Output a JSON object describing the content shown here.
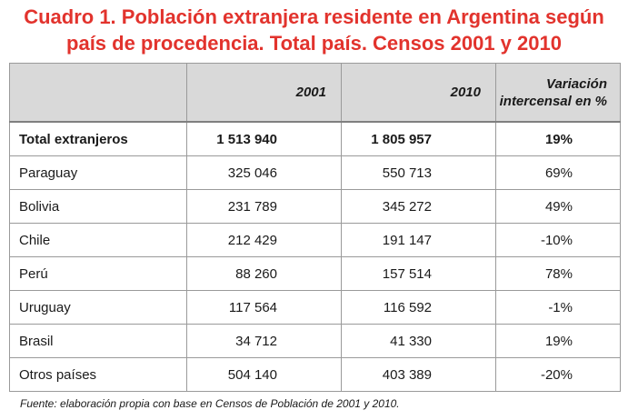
{
  "title_line1": "Cuadro 1. Población extranjera residente en Argentina según",
  "title_line2": "país de procedencia. Total país. Censos 2001 y 2010",
  "headers": {
    "col_2001": "2001",
    "col_2010": "2010",
    "col_var_line1": "Variación",
    "col_var_line2": "intercensal en %"
  },
  "source": "Fuente: elaboración propia con base en Censos de Población de 2001 y 2010.",
  "chart_data": {
    "type": "table",
    "title": "Cuadro 1. Población extranjera residente en Argentina según país de procedencia. Total país. Censos 2001 y 2010",
    "columns": [
      "",
      "2001",
      "2010",
      "Variación intercensal en %"
    ],
    "rows": [
      {
        "name": "Total extranjeros",
        "v2001": "1 513 940",
        "v2010": "1 805 957",
        "var": "19%"
      },
      {
        "name": "Paraguay",
        "v2001": "325 046",
        "v2010": "550 713",
        "var": "69%"
      },
      {
        "name": "Bolivia",
        "v2001": "231 789",
        "v2010": "345 272",
        "var": "49%"
      },
      {
        "name": "Chile",
        "v2001": "212 429",
        "v2010": "191 147",
        "var": "-10%"
      },
      {
        "name": "Perú",
        "v2001": "88 260",
        "v2010": "157 514",
        "var": "78%"
      },
      {
        "name": "Uruguay",
        "v2001": "117 564",
        "v2010": "116 592",
        "var": "-1%"
      },
      {
        "name": "Brasil",
        "v2001": "34 712",
        "v2010": "41 330",
        "var": "19%"
      },
      {
        "name": "Otros países",
        "v2001": "504 140",
        "v2010": "403 389",
        "var": "-20%"
      }
    ]
  }
}
